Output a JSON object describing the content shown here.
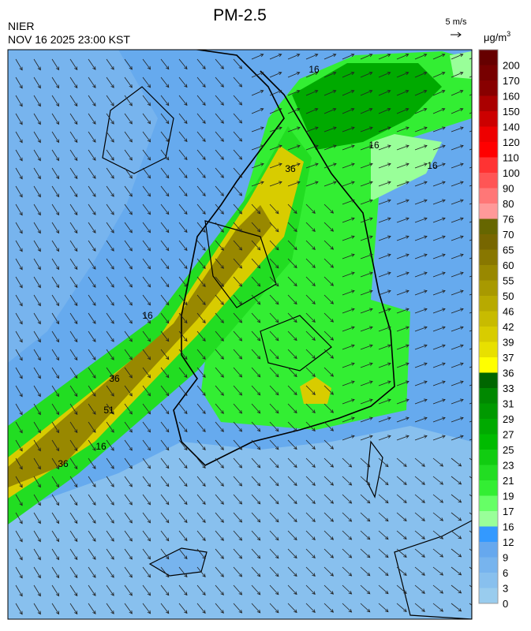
{
  "header": {
    "title": "PM-2.5",
    "agency": "NIER",
    "datetime": "NOV 16 2025 23:00 KST",
    "wind_scale": "5 m/s"
  },
  "colorbar": {
    "unit": "μg/m",
    "unit_sup": "3",
    "ticks": [
      0,
      3,
      6,
      9,
      12,
      16,
      17,
      19,
      21,
      23,
      25,
      27,
      29,
      31,
      33,
      36,
      37,
      39,
      42,
      46,
      50,
      55,
      60,
      65,
      70,
      76,
      80,
      90,
      100,
      110,
      120,
      140,
      150,
      160,
      170,
      200
    ],
    "colors": [
      "#99ccee",
      "#88c0ee",
      "#77b4ee",
      "#66a8ee",
      "#3399ff",
      "#99ff99",
      "#66ff66",
      "#33ee33",
      "#22dd22",
      "#11cc11",
      "#00bb00",
      "#00aa00",
      "#009900",
      "#008800",
      "#006600",
      "#ffff00",
      "#e8e000",
      "#d8cc00",
      "#c8bb00",
      "#b8aa00",
      "#a89900",
      "#988800",
      "#887700",
      "#776600",
      "#666600",
      "#ff9999",
      "#ff7777",
      "#ff5555",
      "#ff3333",
      "#ff0000",
      "#ee0000",
      "#cc0000",
      "#aa0000",
      "#880000",
      "#770000",
      "#660000"
    ]
  },
  "map": {
    "contour_labels": [
      "16",
      "16",
      "16",
      "36",
      "51",
      "36",
      "16",
      "16",
      "36"
    ]
  }
}
